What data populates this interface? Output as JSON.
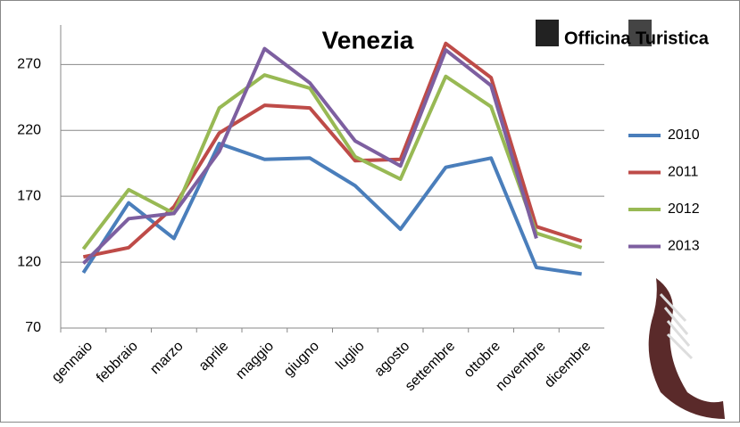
{
  "chart_data": {
    "type": "line",
    "title": "Venezia",
    "logo": "Officina Turistica",
    "categories": [
      "gennaio",
      "febbraio",
      "marzo",
      "aprile",
      "maggio",
      "giugno",
      "luglio",
      "agosto",
      "settembre",
      "ottobre",
      "novembre",
      "dicembre"
    ],
    "series": [
      {
        "name": "2010",
        "color": "#4a7ebb",
        "values": [
          112,
          165,
          138,
          210,
          198,
          199,
          178,
          145,
          192,
          199,
          116,
          111
        ]
      },
      {
        "name": "2011",
        "color": "#be4b48",
        "values": [
          124,
          131,
          162,
          218,
          239,
          237,
          197,
          198,
          286,
          260,
          147,
          136
        ]
      },
      {
        "name": "2012",
        "color": "#98b954",
        "values": [
          130,
          175,
          157,
          237,
          262,
          252,
          200,
          183,
          261,
          238,
          142,
          131
        ]
      },
      {
        "name": "2013",
        "color": "#7d5fa0",
        "values": [
          119,
          153,
          157,
          204,
          282,
          256,
          212,
          193,
          281,
          254,
          138,
          null
        ]
      }
    ],
    "ylim": [
      70,
      300
    ],
    "yticks": [
      70,
      120,
      170,
      220,
      270
    ],
    "grid": true,
    "legend": "right"
  }
}
